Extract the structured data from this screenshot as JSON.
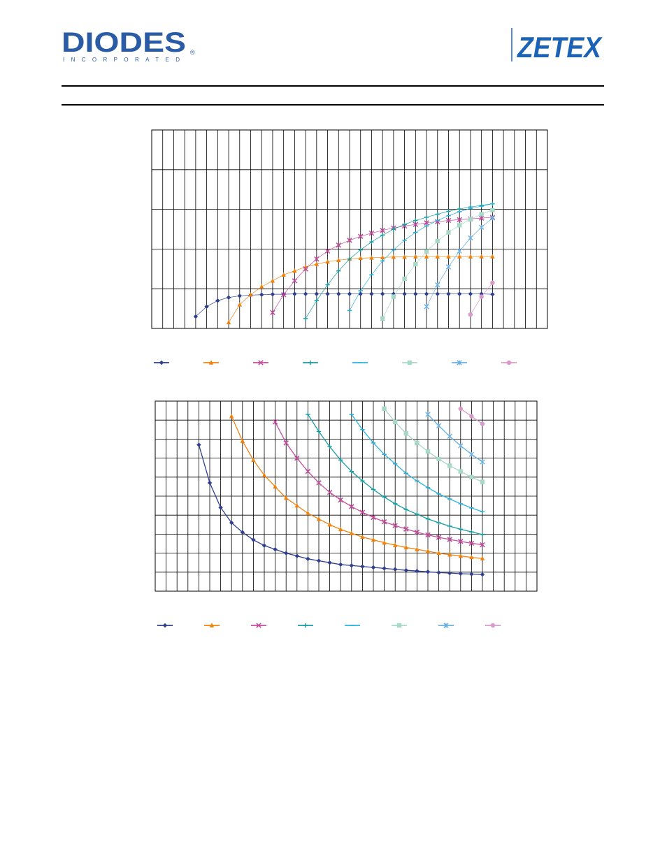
{
  "header": {
    "left_logo": {
      "text": "DIODES",
      "subtext": "INCORPORATED",
      "reg": "®",
      "color": "#2a5ca6"
    },
    "right_logo": {
      "text": "ZETEX",
      "color": "#1d63b5"
    }
  },
  "chart_data": [
    {
      "type": "line",
      "title": "",
      "xlabel": "",
      "ylabel": "",
      "grid": true,
      "legend_position": "bottom",
      "x": [
        4,
        5,
        6,
        7,
        8,
        9,
        10,
        11,
        12,
        13,
        14,
        15,
        16,
        17,
        18,
        19,
        20,
        21,
        22,
        23,
        24,
        25,
        26,
        27,
        28,
        29,
        30,
        31
      ],
      "xlim": [
        0,
        36
      ],
      "ylim": [
        0,
        5
      ],
      "series": [
        {
          "color": "#2e3f8f",
          "marker": "diamond",
          "x": [
            4,
            5,
            6,
            7,
            8,
            9,
            10,
            11,
            12,
            13,
            14,
            15,
            16,
            17,
            18,
            19,
            20,
            21,
            22,
            23,
            24,
            25,
            26,
            27,
            28,
            29,
            30,
            31
          ],
          "values": [
            0.3,
            0.55,
            0.7,
            0.78,
            0.82,
            0.84,
            0.85,
            0.86,
            0.86,
            0.87,
            0.87,
            0.87,
            0.87,
            0.87,
            0.87,
            0.87,
            0.87,
            0.87,
            0.87,
            0.87,
            0.87,
            0.87,
            0.87,
            0.87,
            0.87,
            0.87,
            0.87,
            0.86
          ]
        },
        {
          "color": "#f0820f",
          "marker": "triangle",
          "x": [
            7,
            8,
            9,
            10,
            11,
            12,
            13,
            14,
            15,
            16,
            17,
            18,
            19,
            20,
            21,
            22,
            23,
            24,
            25,
            26,
            27,
            28,
            29,
            30,
            31
          ],
          "values": [
            0.15,
            0.6,
            0.85,
            1.05,
            1.2,
            1.35,
            1.45,
            1.55,
            1.62,
            1.68,
            1.72,
            1.75,
            1.77,
            1.78,
            1.79,
            1.8,
            1.8,
            1.81,
            1.81,
            1.81,
            1.81,
            1.81,
            1.81,
            1.81,
            1.81
          ]
        },
        {
          "color": "#c44d9e",
          "marker": "x",
          "x": [
            11,
            12,
            13,
            14,
            15,
            16,
            17,
            18,
            19,
            20,
            21,
            22,
            23,
            24,
            25,
            26,
            27,
            28,
            29,
            30,
            31
          ],
          "values": [
            0.4,
            0.85,
            1.2,
            1.5,
            1.75,
            1.95,
            2.1,
            2.22,
            2.32,
            2.4,
            2.47,
            2.53,
            2.58,
            2.62,
            2.66,
            2.69,
            2.72,
            2.74,
            2.76,
            2.78,
            2.8
          ]
        },
        {
          "color": "#1a9ba0",
          "marker": "plus",
          "x": [
            14,
            15,
            16,
            17,
            18,
            19,
            20,
            21,
            22,
            23,
            24,
            25,
            26,
            27,
            28,
            29,
            30,
            31
          ],
          "values": [
            0.25,
            0.7,
            1.1,
            1.45,
            1.75,
            1.98,
            2.18,
            2.35,
            2.5,
            2.62,
            2.72,
            2.8,
            2.88,
            2.95,
            3.01,
            3.06,
            3.1,
            3.14
          ]
        },
        {
          "color": "#29b4e0",
          "marker": "dash",
          "x": [
            18,
            19,
            20,
            21,
            22,
            23,
            24,
            25,
            26,
            27,
            28,
            29,
            30,
            31
          ],
          "values": [
            0.45,
            0.95,
            1.35,
            1.7,
            1.98,
            2.22,
            2.42,
            2.58,
            2.72,
            2.84,
            2.94,
            3.02,
            3.08,
            3.14
          ]
        },
        {
          "color": "#a8d8c8",
          "marker": "square",
          "x": [
            21,
            22,
            23,
            24,
            25,
            26,
            27,
            28,
            29,
            30,
            31
          ],
          "values": [
            0.25,
            0.8,
            1.25,
            1.62,
            1.94,
            2.2,
            2.42,
            2.6,
            2.75,
            2.88,
            2.98
          ]
        },
        {
          "color": "#6ab0e0",
          "marker": "star",
          "x": [
            25,
            26,
            27,
            28,
            29,
            30,
            31
          ],
          "values": [
            0.55,
            1.1,
            1.55,
            1.95,
            2.28,
            2.55,
            2.78
          ]
        },
        {
          "color": "#d89ac8",
          "marker": "circle",
          "x": [
            29,
            30,
            31
          ],
          "values": [
            0.35,
            0.8,
            1.15
          ]
        }
      ]
    },
    {
      "type": "line",
      "title": "",
      "xlabel": "",
      "ylabel": "",
      "grid": true,
      "legend_position": "bottom",
      "xlim": [
        0,
        35
      ],
      "ylim": [
        0,
        10
      ],
      "series": [
        {
          "color": "#2e3f8f",
          "marker": "diamond",
          "x": [
            4,
            5,
            6,
            7,
            8,
            9,
            10,
            11,
            12,
            13,
            14,
            15,
            16,
            17,
            18,
            19,
            20,
            21,
            22,
            23,
            24,
            25,
            26,
            27,
            28,
            29,
            30
          ],
          "values": [
            7.7,
            5.7,
            4.4,
            3.6,
            3.1,
            2.7,
            2.4,
            2.2,
            2.0,
            1.85,
            1.7,
            1.6,
            1.5,
            1.4,
            1.35,
            1.3,
            1.25,
            1.2,
            1.15,
            1.1,
            1.06,
            1.02,
            0.98,
            0.95,
            0.92,
            0.9,
            0.88
          ]
        },
        {
          "color": "#f0820f",
          "marker": "triangle",
          "x": [
            7,
            8,
            9,
            10,
            11,
            12,
            13,
            14,
            15,
            16,
            17,
            18,
            19,
            20,
            21,
            22,
            23,
            24,
            25,
            26,
            27,
            28,
            29,
            30
          ],
          "values": [
            9.2,
            7.9,
            6.9,
            6.1,
            5.5,
            4.9,
            4.5,
            4.1,
            3.8,
            3.5,
            3.25,
            3.05,
            2.85,
            2.7,
            2.55,
            2.42,
            2.3,
            2.2,
            2.1,
            2.0,
            1.92,
            1.85,
            1.78,
            1.72
          ]
        },
        {
          "color": "#c44d9e",
          "marker": "x",
          "x": [
            11,
            12,
            13,
            14,
            15,
            16,
            17,
            18,
            19,
            20,
            21,
            22,
            23,
            24,
            25,
            26,
            27,
            28,
            29,
            30
          ],
          "values": [
            8.9,
            7.8,
            7.0,
            6.3,
            5.7,
            5.2,
            4.8,
            4.45,
            4.15,
            3.88,
            3.65,
            3.45,
            3.27,
            3.1,
            2.96,
            2.83,
            2.72,
            2.62,
            2.52,
            2.44
          ]
        },
        {
          "color": "#1a9ba0",
          "marker": "plus",
          "x": [
            14,
            15,
            16,
            17,
            18,
            19,
            20,
            21,
            22,
            23,
            24,
            25,
            26,
            27,
            28,
            29,
            30
          ],
          "values": [
            9.3,
            8.4,
            7.6,
            6.9,
            6.3,
            5.8,
            5.35,
            4.95,
            4.6,
            4.3,
            4.05,
            3.8,
            3.6,
            3.42,
            3.26,
            3.12,
            2.98
          ]
        },
        {
          "color": "#29b4e0",
          "marker": "dash",
          "x": [
            18,
            19,
            20,
            21,
            22,
            23,
            24,
            25,
            26,
            27,
            28,
            29,
            30
          ],
          "values": [
            9.3,
            8.5,
            7.8,
            7.2,
            6.7,
            6.2,
            5.8,
            5.45,
            5.12,
            4.85,
            4.6,
            4.38,
            4.18
          ]
        },
        {
          "color": "#a8d8c8",
          "marker": "square",
          "x": [
            21,
            22,
            23,
            24,
            25,
            26,
            27,
            28,
            29,
            30
          ],
          "values": [
            9.6,
            8.9,
            8.3,
            7.8,
            7.35,
            6.95,
            6.6,
            6.3,
            6.0,
            5.75
          ]
        },
        {
          "color": "#6ab0e0",
          "marker": "star",
          "x": [
            25,
            26,
            27,
            28,
            29,
            30
          ],
          "values": [
            9.3,
            8.7,
            8.15,
            7.65,
            7.2,
            6.8
          ]
        },
        {
          "color": "#d89ac8",
          "marker": "circle",
          "x": [
            28,
            29,
            30
          ],
          "values": [
            9.6,
            9.2,
            8.8
          ]
        }
      ]
    }
  ]
}
